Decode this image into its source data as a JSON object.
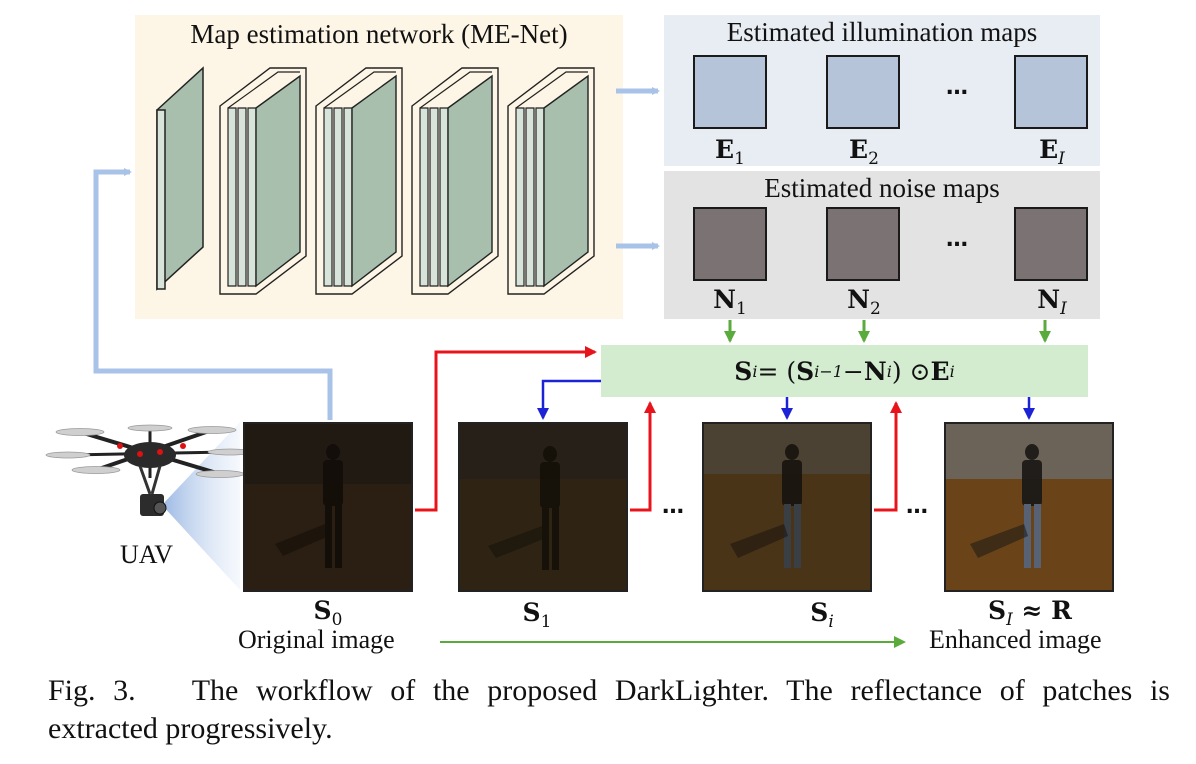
{
  "me_net": {
    "title": "Map estimation network (ME-Net)"
  },
  "illumination": {
    "title": "Estimated illumination maps",
    "labels": [
      "E",
      "E",
      "E"
    ],
    "subs": [
      "1",
      "2",
      "I"
    ],
    "ellipsis": "…"
  },
  "noise": {
    "title": "Estimated noise maps",
    "labels": [
      "N",
      "N",
      "N"
    ],
    "subs": [
      "1",
      "2",
      "I"
    ],
    "ellipsis": "…"
  },
  "formula": {
    "lhs": "S",
    "lhs_sub": "i",
    "eq": " = (",
    "t1": "S",
    "t1_sub": "i−1",
    "minus": " − ",
    "t2": "N",
    "t2_sub": "i",
    "odot": ") ⊙ ",
    "t3": "E",
    "t3_sub": "i"
  },
  "images": {
    "s0": {
      "sym": "S",
      "sub": "0"
    },
    "s1": {
      "sym": "S",
      "sub": "1"
    },
    "si": {
      "sym": "S",
      "sub": "i"
    },
    "sI": {
      "sym": "S",
      "sub": "I",
      "approx": " ≈ ",
      "r": "R"
    },
    "ellipsis": "…"
  },
  "labels": {
    "uav": "UAV",
    "original": "Original image",
    "enhanced": "Enhanced image"
  },
  "caption": {
    "fig": "Fig. 3.",
    "text": "The workflow of the proposed DarkLighter. The reflectance of patches is extracted progressively."
  },
  "colors": {
    "me_panel": "#fdf6e6",
    "illum_panel": "#e8ecf3",
    "noise_panel": "#e3e3e3",
    "formula_box": "#d3ecd0",
    "red_arrow": "#e8141c",
    "blue_arrow": "#1c22d6",
    "green_arrow": "#5aaa3c",
    "light_blue_arrow": "#a9c3e8",
    "layer_fill": "#a8bfae"
  }
}
